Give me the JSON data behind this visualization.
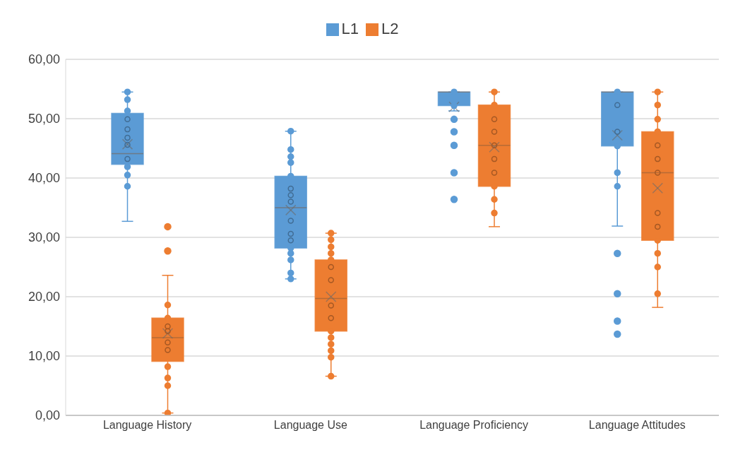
{
  "chart_data": {
    "type": "box",
    "categories": [
      "Language History",
      "Language Use",
      "Language Proficiency",
      "Language Attitudes"
    ],
    "series": [
      {
        "name": "L1",
        "color": "#5b9bd5",
        "boxes": [
          {
            "low": 32.7,
            "q1": 42.3,
            "median": 44.1,
            "q3": 50.9,
            "high": 54.5,
            "mean": 45.7
          },
          {
            "low": 23.0,
            "q1": 28.2,
            "median": 35.0,
            "q3": 40.3,
            "high": 47.9,
            "mean": 34.6
          },
          {
            "low": 51.3,
            "q1": 52.2,
            "median": 54.5,
            "q3": 54.5,
            "high": 54.5,
            "mean": 52.0,
            "outliers": [
              49.9,
              47.8,
              45.5,
              40.9,
              36.4
            ]
          },
          {
            "low": 31.9,
            "q1": 45.4,
            "median": 54.5,
            "q3": 54.5,
            "high": 54.5,
            "mean": 47.2,
            "outliers": [
              27.3,
              20.5,
              15.9,
              13.7
            ]
          }
        ]
      },
      {
        "name": "L2",
        "color": "#ed7d31",
        "boxes": [
          {
            "low": 0.4,
            "q1": 9.1,
            "median": 13.1,
            "q3": 16.4,
            "high": 23.6,
            "mean": 13.8,
            "outliers": [
              31.8,
              27.7
            ]
          },
          {
            "low": 6.6,
            "q1": 14.2,
            "median": 19.7,
            "q3": 26.2,
            "high": 30.7,
            "mean": 20.0
          },
          {
            "low": 31.8,
            "q1": 38.6,
            "median": 45.5,
            "q3": 52.3,
            "high": 54.5,
            "mean": 45.2
          },
          {
            "low": 18.2,
            "q1": 29.5,
            "median": 40.9,
            "q3": 47.8,
            "high": 54.5,
            "mean": 38.3
          }
        ]
      },
      {
        "type": "scatter",
        "color": "#5b9bd5",
        "x": [
          "Language History",
          "Language History",
          "Language History",
          "Language History",
          "Language History",
          "Language History",
          "Language History",
          "Language History",
          "Language History",
          "Language History",
          "Language History",
          "Language Use",
          "Language Use",
          "Language Use",
          "Language Use",
          "Language Use",
          "Language Use",
          "Language Use",
          "Language Use",
          "Language Use",
          "Language Use",
          "Language Use",
          "Language Use",
          "Language Use",
          "Language Use",
          "Language Use",
          "Language Use",
          "Language Proficiency",
          "Language Proficiency",
          "Language Attitudes",
          "Language Attitudes",
          "Language Attitudes",
          "Language Attitudes",
          "Language Attitudes",
          "Language Attitudes"
        ],
        "values": [
          54.5,
          53.2,
          51.3,
          49.9,
          48.2,
          46.8,
          45.6,
          43.2,
          41.9,
          40.5,
          38.6,
          44.8,
          43.6,
          42.6,
          40.3,
          38.2,
          37.1,
          36.0,
          32.8,
          30.6,
          29.5,
          28.2,
          27.3,
          26.2,
          24.0,
          23.0,
          47.9,
          54.5,
          52.2,
          54.5,
          52.3,
          47.8,
          45.4,
          40.9,
          38.6
        ]
      },
      {
        "type": "scatter",
        "color": "#ed7d31",
        "x": [
          "Language History",
          "Language History",
          "Language History",
          "Language History",
          "Language History",
          "Language History",
          "Language History",
          "Language History",
          "Language History",
          "Language History",
          "Language Use",
          "Language Use",
          "Language Use",
          "Language Use",
          "Language Use",
          "Language Use",
          "Language Use",
          "Language Use",
          "Language Use",
          "Language Use",
          "Language Use",
          "Language Use",
          "Language Use",
          "Language Use",
          "Language Use",
          "Language Proficiency",
          "Language Proficiency",
          "Language Proficiency",
          "Language Proficiency",
          "Language Proficiency",
          "Language Proficiency",
          "Language Proficiency",
          "Language Proficiency",
          "Language Proficiency",
          "Language Proficiency",
          "Language Attitudes",
          "Language Attitudes",
          "Language Attitudes",
          "Language Attitudes",
          "Language Attitudes",
          "Language Attitudes",
          "Language Attitudes",
          "Language Attitudes",
          "Language Attitudes",
          "Language Attitudes",
          "Language Attitudes",
          "Language Attitudes",
          "Language Attitudes"
        ],
        "values": [
          18.6,
          16.4,
          15.0,
          14.2,
          12.3,
          11.0,
          8.2,
          6.3,
          5.0,
          0.4,
          30.7,
          29.6,
          28.4,
          27.3,
          26.2,
          25.0,
          22.8,
          18.5,
          16.4,
          14.2,
          13.1,
          12.0,
          10.9,
          9.8,
          6.6,
          54.5,
          52.3,
          49.9,
          47.8,
          45.5,
          43.2,
          40.9,
          38.6,
          36.4,
          34.1,
          54.5,
          52.3,
          49.9,
          47.8,
          45.5,
          43.2,
          40.9,
          34.1,
          31.8,
          29.5,
          27.3,
          25.0,
          20.5
        ]
      }
    ],
    "ylim": [
      0,
      60
    ],
    "yticks": [
      {
        "value": 0,
        "label": "0,00"
      },
      {
        "value": 10,
        "label": "10,00"
      },
      {
        "value": 20,
        "label": "20,00"
      },
      {
        "value": 30,
        "label": "30,00"
      },
      {
        "value": 40,
        "label": "40,00"
      },
      {
        "value": 50,
        "label": "50,00"
      },
      {
        "value": 60,
        "label": "60,00"
      }
    ],
    "grid": "y",
    "legend": "top",
    "marker": "circle"
  }
}
